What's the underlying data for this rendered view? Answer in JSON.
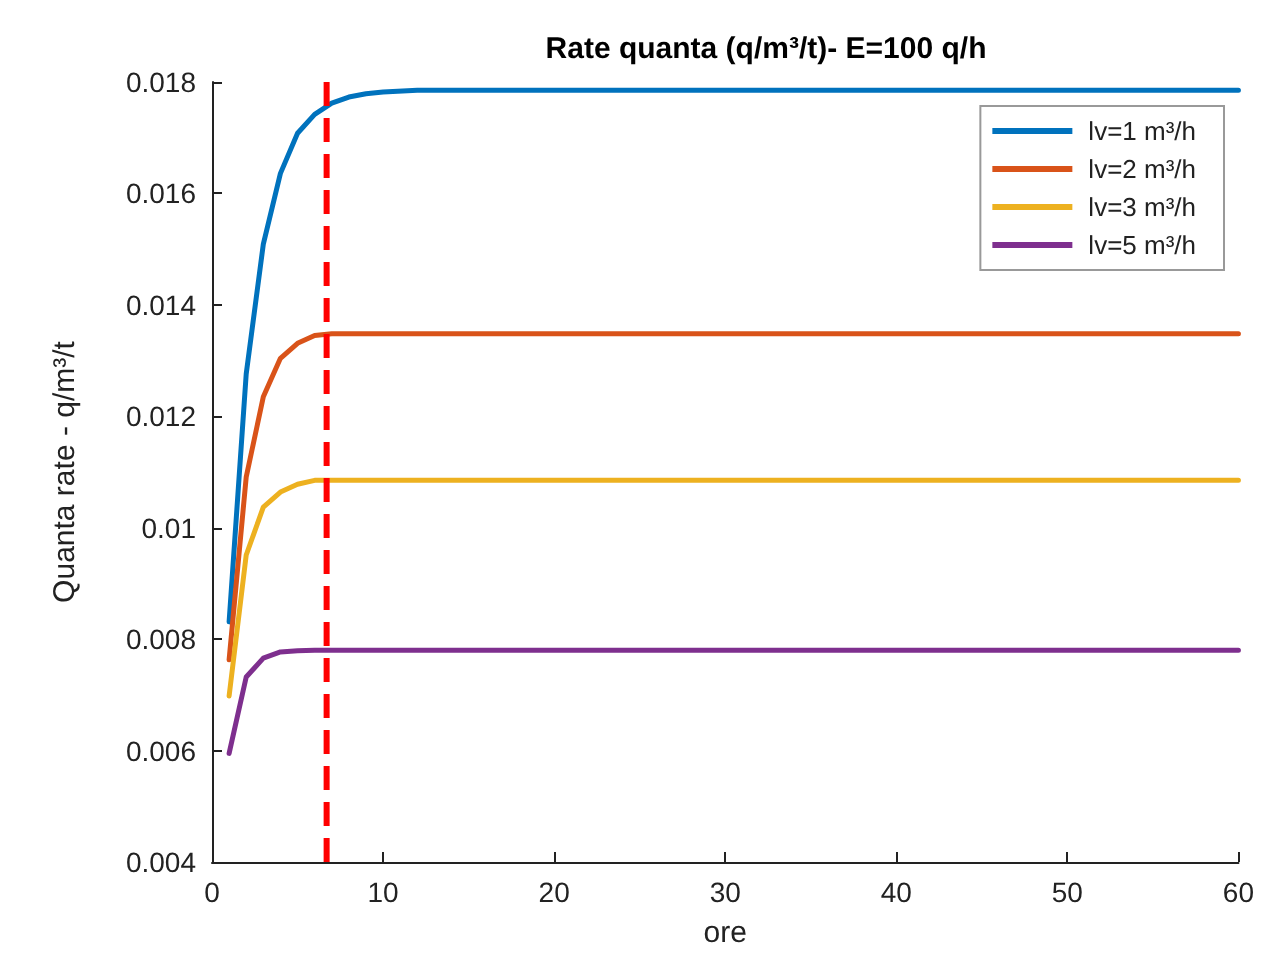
{
  "chart_data": {
    "type": "line",
    "title": "Rate quanta (q/m³/t)- E=100 q/h",
    "xlabel": "ore",
    "ylabel": "Quanta rate - q/m³/t",
    "x": [
      1,
      2,
      3,
      4,
      5,
      6,
      7,
      8,
      9,
      10,
      12,
      15,
      20,
      30,
      40,
      50,
      60
    ],
    "series": [
      {
        "name": "lv=1 m³/h",
        "color": "#0072bd",
        "values": [
          0.00831,
          0.01276,
          0.01509,
          0.01636,
          0.01708,
          0.01742,
          0.01762,
          0.01773,
          0.01779,
          0.01782,
          0.01785,
          0.01785,
          0.01785,
          0.01785,
          0.01785,
          0.01785,
          0.01785
        ]
      },
      {
        "name": "lv=2 m³/h",
        "color": "#d95319",
        "values": [
          0.00763,
          0.01091,
          0.01235,
          0.01304,
          0.01331,
          0.01345,
          0.01348,
          0.01348,
          0.01348,
          0.01348,
          0.01348,
          0.01348,
          0.01348,
          0.01348,
          0.01348,
          0.01348,
          0.01348
        ]
      },
      {
        "name": "lv=3 m³/h",
        "color": "#edb120",
        "values": [
          0.00698,
          0.00951,
          0.01037,
          0.01064,
          0.01078,
          0.01085,
          0.01085,
          0.01085,
          0.01085,
          0.01085,
          0.01085,
          0.01085,
          0.01085,
          0.01085,
          0.01085,
          0.01085,
          0.01085
        ]
      },
      {
        "name": "lv=5 m³/h",
        "color": "#7e2f8e",
        "values": [
          0.00595,
          0.00732,
          0.00766,
          0.00777,
          0.00779,
          0.0078,
          0.0078,
          0.0078,
          0.0078,
          0.0078,
          0.0078,
          0.0078,
          0.0078,
          0.0078,
          0.0078,
          0.0078,
          0.0078
        ]
      }
    ],
    "xlim": [
      0,
      60
    ],
    "xticks": [
      0,
      10,
      20,
      30,
      40,
      50,
      60
    ],
    "ylim": [
      0.004,
      0.018
    ],
    "yticks": [
      {
        "value": 0.004,
        "label": "0.004"
      },
      {
        "value": 0.006,
        "label": "0.006"
      },
      {
        "value": 0.008,
        "label": "0.008"
      },
      {
        "value": 0.01,
        "label": "0.01"
      },
      {
        "value": 0.012,
        "label": "0.012"
      },
      {
        "value": 0.014,
        "label": "0.014"
      },
      {
        "value": 0.016,
        "label": "0.016"
      },
      {
        "value": 0.018,
        "label": "0.018"
      }
    ],
    "ref_lines": [
      {
        "axis": "x",
        "value": 6.7,
        "color": "#ff0000",
        "line_style": "dashed"
      }
    ],
    "legend": "top right",
    "grid": false,
    "marker": "none",
    "line_style": "solid"
  }
}
